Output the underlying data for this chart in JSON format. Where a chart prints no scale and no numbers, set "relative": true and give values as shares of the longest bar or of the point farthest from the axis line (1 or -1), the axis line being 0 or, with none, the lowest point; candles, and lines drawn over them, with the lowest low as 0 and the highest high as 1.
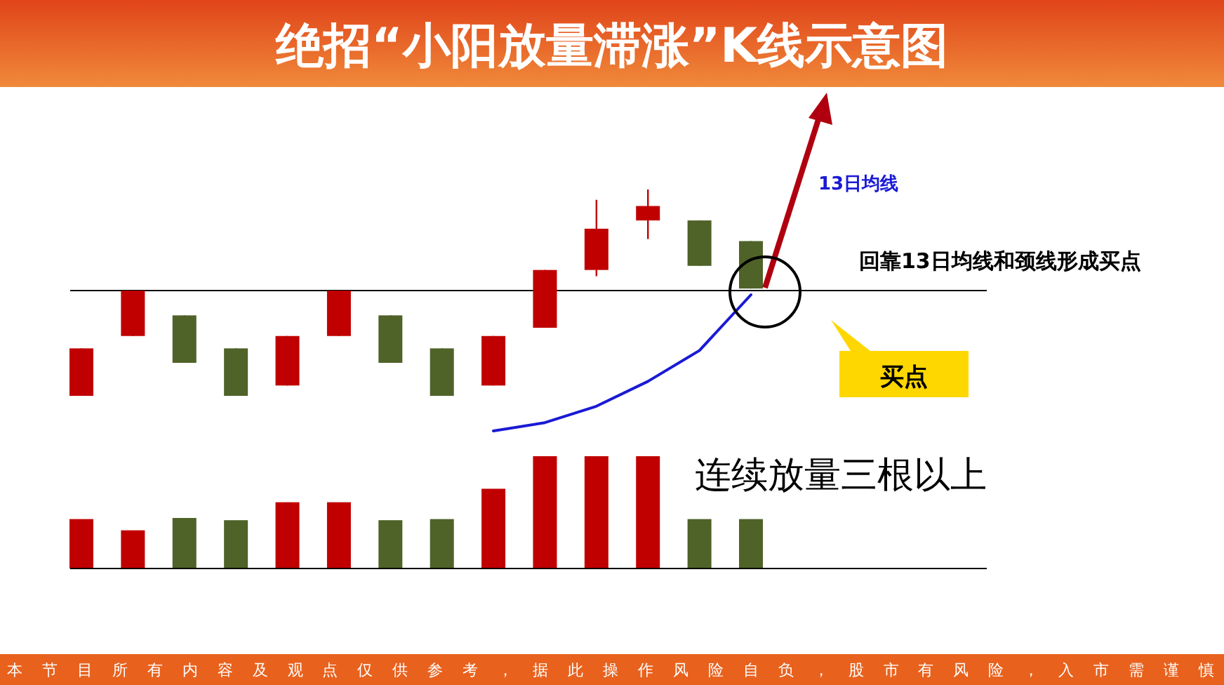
{
  "chart_data": [
    {
      "type": "candlestick",
      "title": "绝招“小阳放量滞涨”K线示意图",
      "relative": true,
      "categories": [
        null,
        null,
        null,
        null,
        null,
        null,
        null,
        null,
        null,
        null,
        null,
        null,
        null,
        null
      ],
      "ohlc": [
        [
          0,
          0.23,
          0,
          0.23
        ],
        [
          0.29,
          0.51,
          0.29,
          0.51
        ],
        [
          0.39,
          0.39,
          0.16,
          0.16
        ],
        [
          0.23,
          0.23,
          0,
          0
        ],
        [
          0.05,
          0.29,
          0.05,
          0.29
        ],
        [
          0.29,
          0.51,
          0.29,
          0.51
        ],
        [
          0.39,
          0.39,
          0.16,
          0.16
        ],
        [
          0.23,
          0.23,
          0,
          0
        ],
        [
          0.05,
          0.29,
          0.05,
          0.29
        ],
        [
          0.33,
          0.61,
          0.33,
          0.61
        ],
        [
          0.61,
          0.95,
          0.58,
          0.81
        ],
        [
          0.85,
          1,
          0.76,
          0.92
        ],
        [
          0.85,
          0.85,
          0.63,
          0.63
        ],
        [
          0.75,
          0.75,
          0.52,
          0.52
        ]
      ],
      "colors": [
        "#c00000",
        "#c00000",
        "#4f6228",
        "#4f6228",
        "#c00000",
        "#c00000",
        "#4f6228",
        "#4f6228",
        "#c00000",
        "#c00000",
        "#c00000",
        "#c00000",
        "#4f6228",
        "#4f6228"
      ],
      "series": [
        {
          "type": "line",
          "name": "13日均线",
          "color": "#1a1ad6",
          "values": [
            null,
            null,
            null,
            null,
            null,
            null,
            null,
            null,
            -0.17,
            -0.13,
            -0.05,
            0.07,
            0.22,
            0.49
          ]
        }
      ],
      "ref_lines": [
        {
          "axis": "y",
          "value": 0.51,
          "color": "#000000"
        }
      ],
      "annotations": [
        "回靠13日均线和颈线形成买点",
        "买点",
        "本节目所有内容及观点仅供参考，据此操作风险自负，股市有风险，入市需谨慎"
      ]
    },
    {
      "type": "bar",
      "relative": true,
      "categories": [
        null,
        null,
        null,
        null,
        null,
        null,
        null,
        null,
        null,
        null,
        null,
        null,
        null,
        null
      ],
      "values": [
        0.44,
        0.34,
        0.45,
        0.43,
        0.59,
        0.59,
        0.43,
        0.44,
        0.71,
        1,
        1,
        1,
        0.44,
        0.44
      ],
      "colors": [
        "#c00000",
        "#c00000",
        "#4f6228",
        "#4f6228",
        "#c00000",
        "#c00000",
        "#4f6228",
        "#4f6228",
        "#c00000",
        "#c00000",
        "#c00000",
        "#c00000",
        "#4f6228",
        "#4f6228"
      ],
      "annotations": [
        "连续放量三根以上"
      ]
    }
  ]
}
